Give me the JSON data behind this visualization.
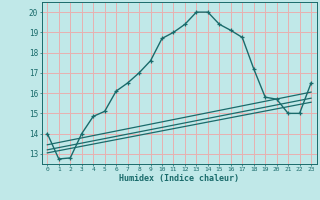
{
  "xlabel": "Humidex (Indice chaleur)",
  "bg_color": "#c0e8e8",
  "grid_color": "#e8b0b0",
  "line_color": "#1a6b6b",
  "xlim": [
    -0.5,
    23.5
  ],
  "ylim": [
    12.5,
    20.5
  ],
  "xticks": [
    0,
    1,
    2,
    3,
    4,
    5,
    6,
    7,
    8,
    9,
    10,
    11,
    12,
    13,
    14,
    15,
    16,
    17,
    18,
    19,
    20,
    21,
    22,
    23
  ],
  "yticks": [
    13,
    14,
    15,
    16,
    17,
    18,
    19,
    20
  ],
  "main_x": [
    0,
    1,
    2,
    3,
    4,
    5,
    6,
    7,
    8,
    9,
    10,
    11,
    12,
    13,
    14,
    15,
    16,
    17,
    18,
    19,
    20,
    21,
    22,
    23
  ],
  "main_y": [
    14.0,
    12.75,
    12.8,
    14.0,
    14.85,
    15.1,
    16.1,
    16.5,
    17.0,
    17.6,
    18.7,
    19.0,
    19.4,
    20.0,
    20.0,
    19.4,
    19.1,
    18.75,
    17.2,
    15.8,
    15.7,
    15.0,
    15.0,
    16.5
  ],
  "line2_x": [
    0,
    23
  ],
  "line2_y": [
    13.05,
    15.55
  ],
  "line3_x": [
    0,
    23
  ],
  "line3_y": [
    13.2,
    15.75
  ],
  "line4_x": [
    0,
    23
  ],
  "line4_y": [
    13.45,
    16.05
  ]
}
